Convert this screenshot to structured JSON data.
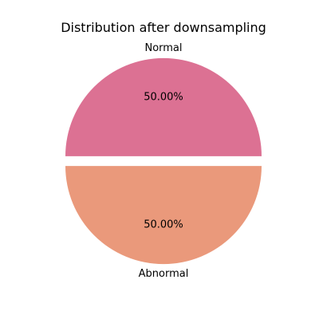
{
  "chart_data": {
    "type": "pie",
    "title": "Distribution after downsampling",
    "slices": [
      {
        "label": "Normal",
        "value": 50.0,
        "pct_label": "50.00%",
        "color": "#dc7193",
        "explode": 0.05
      },
      {
        "label": "Abnormal",
        "value": 50.0,
        "pct_label": "50.00%",
        "color": "#ea997b",
        "explode": 0.05
      }
    ],
    "start_angle_deg": 0,
    "direction": "counterclockwise"
  }
}
